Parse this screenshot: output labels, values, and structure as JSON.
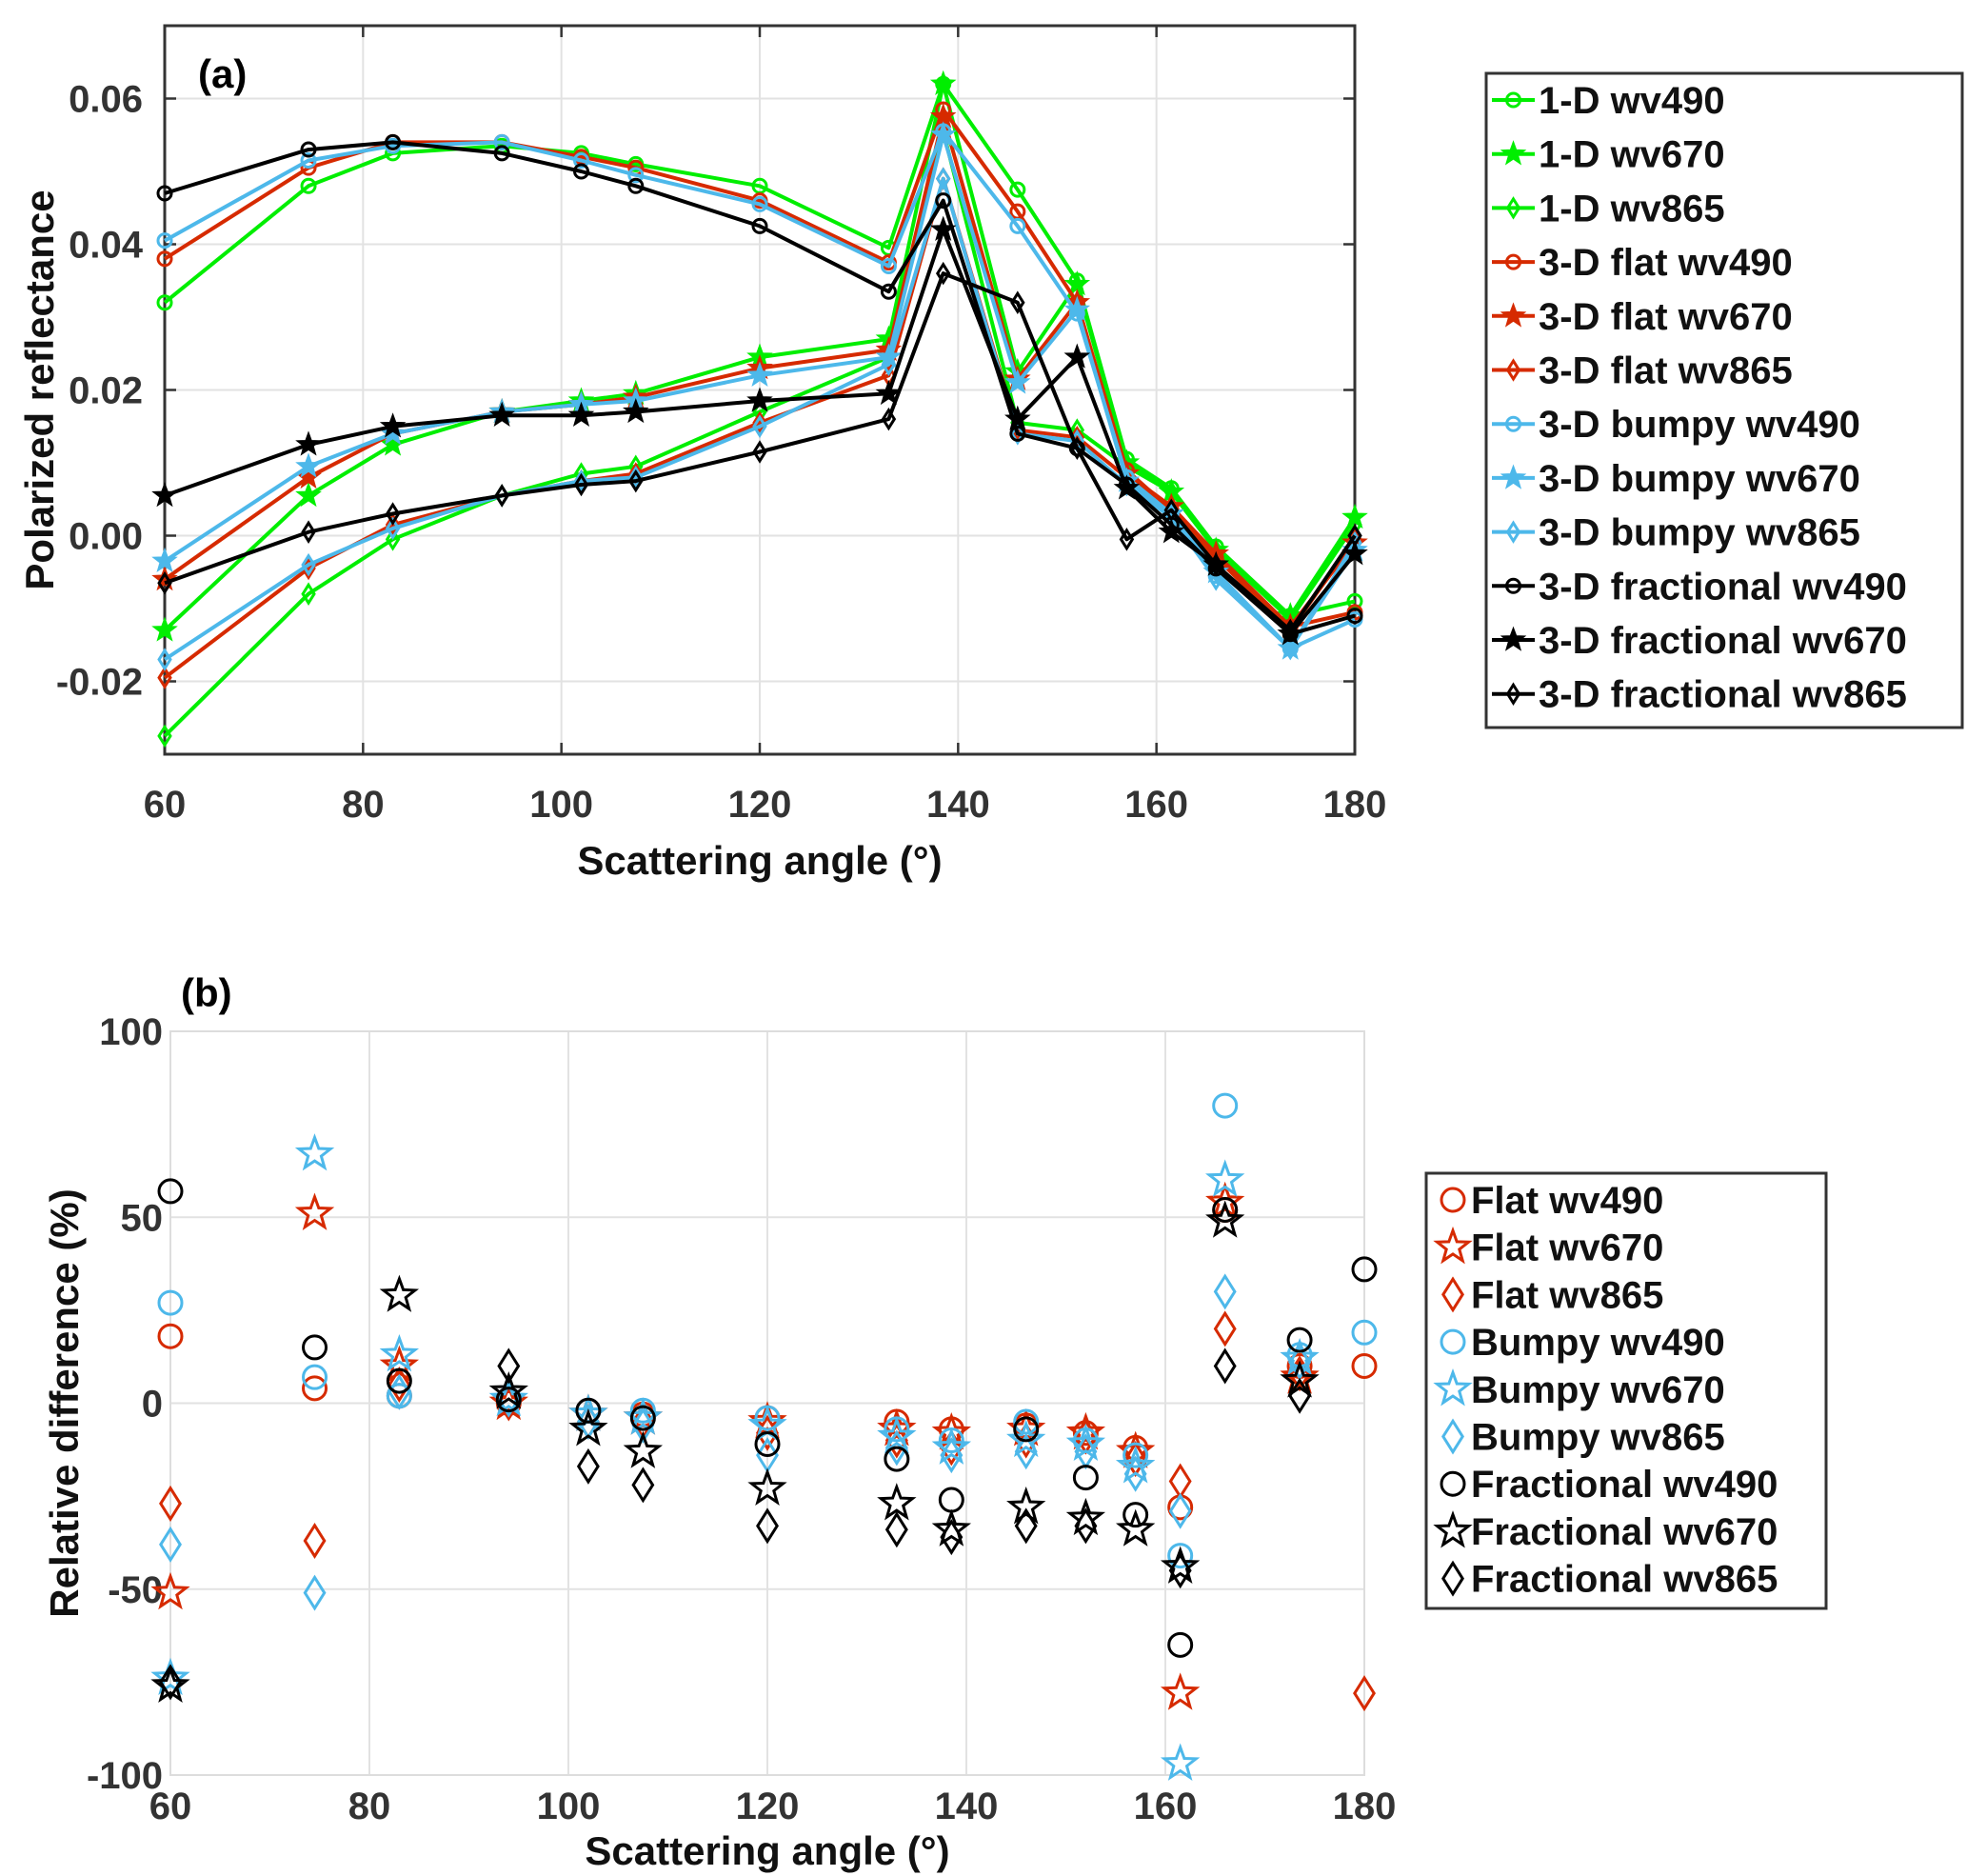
{
  "chart_data": [
    {
      "id": "a",
      "type": "line",
      "panel_label": "(a)",
      "xlabel": "Scattering angle (°)",
      "ylabel": "Polarized reflectance",
      "xlim": [
        60,
        180
      ],
      "ylim": [
        -0.03,
        0.07
      ],
      "xticks": [
        60,
        80,
        100,
        120,
        140,
        160,
        180
      ],
      "xtick_labels": [
        "60",
        "80",
        "100",
        "120",
        "140",
        "160",
        "180"
      ],
      "yticks": [
        -0.02,
        0,
        0.02,
        0.04,
        0.06
      ],
      "ytick_labels": [
        "-0.02",
        "0.00",
        "0.02",
        "0.04",
        "0.06"
      ],
      "grid": true,
      "legend_position": "outside-right",
      "x": [
        60,
        74.5,
        83,
        94,
        102,
        107.5,
        120,
        133,
        138.5,
        146,
        152,
        157,
        161.5,
        166,
        173.5,
        180
      ],
      "series": [
        {
          "name": "1-D wv490",
          "color": "#00ee00",
          "marker": "circle",
          "values": [
            0.032,
            0.048,
            0.0525,
            0.0535,
            0.0525,
            0.051,
            0.048,
            0.0395,
            0.062,
            0.0475,
            0.035,
            0.0105,
            0.0065,
            -0.0015,
            -0.011,
            -0.009
          ]
        },
        {
          "name": "1-D wv670",
          "color": "#00ee00",
          "marker": "star",
          "values": [
            -0.013,
            0.0055,
            0.0125,
            0.017,
            0.0185,
            0.0195,
            0.0245,
            0.027,
            0.062,
            0.0225,
            0.0345,
            0.01,
            0.006,
            -0.002,
            -0.011,
            0.0025
          ]
        },
        {
          "name": "1-D wv865",
          "color": "#00ee00",
          "marker": "diamond",
          "values": [
            -0.0275,
            -0.008,
            -0.0005,
            0.0055,
            0.0085,
            0.0095,
            0.017,
            0.0245,
            0.0555,
            0.0155,
            0.0145,
            0.0095,
            0.006,
            -0.002,
            -0.0115,
            0.0015
          ]
        },
        {
          "name": "3-D flat wv490",
          "color": "#d62a00",
          "marker": "circle",
          "values": [
            0.038,
            0.0505,
            0.054,
            0.054,
            0.052,
            0.0505,
            0.046,
            0.0375,
            0.0585,
            0.0445,
            0.032,
            0.009,
            0.0035,
            -0.003,
            -0.0125,
            -0.0105
          ]
        },
        {
          "name": "3-D flat wv670",
          "color": "#d62a00",
          "marker": "star",
          "values": [
            -0.006,
            0.008,
            0.014,
            0.017,
            0.018,
            0.019,
            0.023,
            0.0255,
            0.0575,
            0.0215,
            0.032,
            0.0085,
            0.004,
            -0.0025,
            -0.0125,
            -0.001
          ]
        },
        {
          "name": "3-D flat wv865",
          "color": "#d62a00",
          "marker": "diamond",
          "values": [
            -0.0195,
            -0.0045,
            0.0015,
            0.0055,
            0.0075,
            0.0085,
            0.0155,
            0.022,
            0.049,
            0.0145,
            0.0135,
            0.008,
            0.004,
            -0.003,
            -0.013,
            -0.0005
          ]
        },
        {
          "name": "3-D bumpy wv490",
          "color": "#4db8ea",
          "marker": "circle",
          "values": [
            0.0405,
            0.0515,
            0.0535,
            0.054,
            0.0515,
            0.0495,
            0.0455,
            0.037,
            0.0555,
            0.0425,
            0.0305,
            0.008,
            0.003,
            -0.0055,
            -0.0155,
            -0.0115
          ]
        },
        {
          "name": "3-D bumpy wv670",
          "color": "#4db8ea",
          "marker": "star",
          "values": [
            -0.0035,
            0.0095,
            0.014,
            0.017,
            0.018,
            0.0185,
            0.022,
            0.0245,
            0.055,
            0.021,
            0.031,
            0.0075,
            0.003,
            -0.005,
            -0.0155,
            -0.002
          ]
        },
        {
          "name": "3-D bumpy wv865",
          "color": "#4db8ea",
          "marker": "diamond",
          "values": [
            -0.017,
            -0.004,
            0.001,
            0.0055,
            0.0075,
            0.008,
            0.015,
            0.0235,
            0.049,
            0.014,
            0.013,
            0.007,
            0.0025,
            -0.006,
            -0.0155,
            -0.001
          ]
        },
        {
          "name": "3-D fractional wv490",
          "color": "#000000",
          "marker": "circle",
          "values": [
            0.047,
            0.053,
            0.054,
            0.0525,
            0.05,
            0.048,
            0.0425,
            0.0335,
            0.046,
            0.014,
            0.012,
            0.007,
            0.0015,
            -0.0045,
            -0.0135,
            -0.011
          ]
        },
        {
          "name": "3-D fractional wv670",
          "color": "#000000",
          "marker": "star",
          "values": [
            0.0055,
            0.0125,
            0.015,
            0.0165,
            0.0165,
            0.017,
            0.0185,
            0.0195,
            0.042,
            0.016,
            0.0245,
            0.0065,
            0.0005,
            -0.004,
            -0.0135,
            -0.0025
          ]
        },
        {
          "name": "3-D fractional wv865",
          "color": "#000000",
          "marker": "diamond",
          "values": [
            -0.0065,
            0.0005,
            0.003,
            0.0055,
            0.007,
            0.0075,
            0.0115,
            0.016,
            0.036,
            0.032,
            0.012,
            -0.0005,
            0.0035,
            -0.004,
            -0.013,
            0
          ]
        }
      ]
    },
    {
      "id": "b",
      "type": "scatter",
      "panel_label": "(b)",
      "xlabel": "Scattering angle (°)",
      "ylabel": "Relative difference (%)",
      "xlim": [
        60,
        180
      ],
      "ylim": [
        -100,
        100
      ],
      "xticks": [
        60,
        80,
        100,
        120,
        140,
        160,
        180
      ],
      "xtick_labels": [
        "60",
        "80",
        "100",
        "120",
        "140",
        "160",
        "180"
      ],
      "yticks": [
        -100,
        -50,
        0,
        50,
        100
      ],
      "ytick_labels": [
        "-100",
        "-50",
        "0",
        "50",
        "100"
      ],
      "grid": true,
      "legend_position": "outside-right",
      "x": [
        60,
        74.5,
        83,
        94,
        102,
        107.5,
        120,
        133,
        138.5,
        146,
        152,
        157,
        161.5,
        166,
        173.5,
        180
      ],
      "series": [
        {
          "name": "Flat wv490",
          "color": "#d62a00",
          "marker": "circle",
          "values": [
            18,
            4,
            2,
            0,
            -2,
            -3,
            -4,
            -5,
            -7,
            -6,
            -8,
            -12,
            -28,
            52,
            10,
            10
          ]
        },
        {
          "name": "Flat wv670",
          "color": "#d62a00",
          "marker": "star",
          "values": [
            -51,
            51,
            10,
            0,
            -3,
            -4,
            -5,
            -7,
            -8,
            -7,
            -8,
            -13,
            -78,
            54,
            7,
            null
          ]
        },
        {
          "name": "Flat wv865",
          "color": "#d62a00",
          "marker": "diamond",
          "values": [
            -27,
            -37,
            5,
            0,
            -5,
            -5,
            -8,
            -10,
            -12,
            -10,
            -9,
            -15,
            -21,
            20,
            8,
            -78
          ]
        },
        {
          "name": "Bumpy wv490",
          "color": "#4db8ea",
          "marker": "circle",
          "values": [
            27,
            7,
            2,
            1,
            -2,
            -2,
            -4,
            -7,
            -10,
            -5,
            -10,
            -14,
            -41,
            80,
            13,
            19
          ]
        },
        {
          "name": "Bumpy wv670",
          "color": "#4db8ea",
          "marker": "star",
          "values": [
            -74,
            67,
            13,
            1,
            -3,
            -4,
            -6,
            -9,
            -12,
            -10,
            -11,
            -17,
            -97,
            60,
            12,
            null
          ]
        },
        {
          "name": "Bumpy wv865",
          "color": "#4db8ea",
          "marker": "diamond",
          "values": [
            -38,
            -51,
            3,
            1,
            -5,
            -6,
            -14,
            -12,
            -14,
            -13,
            -13,
            -19,
            -29,
            30,
            11,
            null
          ]
        },
        {
          "name": "Fractional wv490",
          "color": "#000000",
          "marker": "circle",
          "values": [
            57,
            15,
            6,
            1,
            -2,
            -4,
            -11,
            -15,
            -26,
            -7,
            -20,
            -30,
            -65,
            52,
            17,
            36
          ]
        },
        {
          "name": "Fractional wv670",
          "color": "#000000",
          "marker": "star",
          "values": [
            -76,
            null,
            29,
            3,
            -7,
            -13,
            -23,
            -27,
            -34,
            -28,
            -31,
            -34,
            -44,
            49,
            6,
            null
          ]
        },
        {
          "name": "Fractional wv865",
          "color": "#000000",
          "marker": "diamond",
          "values": [
            -75,
            null,
            null,
            10,
            -17,
            -22,
            -33,
            -34,
            -36,
            -33,
            -33,
            null,
            -45,
            10,
            2,
            null
          ]
        }
      ]
    }
  ]
}
